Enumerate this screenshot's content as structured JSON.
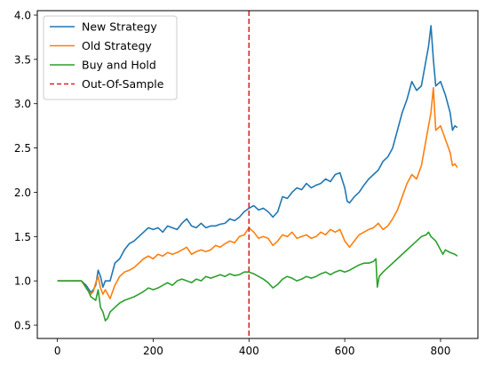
{
  "chart_data": {
    "type": "line",
    "title": "",
    "xlabel": "",
    "ylabel": "",
    "xlim": [
      -42,
      878
    ],
    "ylim": [
      0.35,
      4.05
    ],
    "xticks": [
      0,
      200,
      400,
      600,
      800
    ],
    "yticks": [
      0.5,
      1.0,
      1.5,
      2.0,
      2.5,
      3.0,
      3.5,
      4.0
    ],
    "ytick_labels": [
      "0.5",
      "1.0",
      "1.5",
      "2.0",
      "2.5",
      "3.0",
      "3.5",
      "4.0"
    ],
    "grid": false,
    "legend_position": "upper-left",
    "vline": {
      "x": 400,
      "label": "Out-Of-Sample",
      "color": "#d62728",
      "style": "dashed"
    },
    "series": [
      {
        "name": "New Strategy",
        "color": "#1f77b4",
        "points": [
          [
            0,
            1.0
          ],
          [
            20,
            1.0
          ],
          [
            50,
            1.0
          ],
          [
            60,
            0.95
          ],
          [
            70,
            0.87
          ],
          [
            75,
            0.9
          ],
          [
            80,
            0.95
          ],
          [
            85,
            1.12
          ],
          [
            90,
            1.05
          ],
          [
            95,
            0.93
          ],
          [
            100,
            1.0
          ],
          [
            110,
            1.0
          ],
          [
            120,
            1.2
          ],
          [
            130,
            1.25
          ],
          [
            140,
            1.35
          ],
          [
            150,
            1.42
          ],
          [
            160,
            1.45
          ],
          [
            170,
            1.5
          ],
          [
            180,
            1.55
          ],
          [
            190,
            1.6
          ],
          [
            200,
            1.58
          ],
          [
            210,
            1.6
          ],
          [
            220,
            1.55
          ],
          [
            230,
            1.62
          ],
          [
            240,
            1.6
          ],
          [
            250,
            1.58
          ],
          [
            260,
            1.65
          ],
          [
            270,
            1.7
          ],
          [
            280,
            1.62
          ],
          [
            290,
            1.6
          ],
          [
            300,
            1.65
          ],
          [
            310,
            1.6
          ],
          [
            320,
            1.62
          ],
          [
            330,
            1.62
          ],
          [
            340,
            1.64
          ],
          [
            350,
            1.65
          ],
          [
            360,
            1.7
          ],
          [
            370,
            1.68
          ],
          [
            380,
            1.72
          ],
          [
            390,
            1.78
          ],
          [
            400,
            1.82
          ],
          [
            410,
            1.85
          ],
          [
            420,
            1.8
          ],
          [
            430,
            1.82
          ],
          [
            440,
            1.78
          ],
          [
            450,
            1.72
          ],
          [
            460,
            1.78
          ],
          [
            470,
            1.95
          ],
          [
            480,
            1.93
          ],
          [
            490,
            2.0
          ],
          [
            500,
            2.05
          ],
          [
            510,
            2.03
          ],
          [
            520,
            2.1
          ],
          [
            530,
            2.05
          ],
          [
            540,
            2.08
          ],
          [
            550,
            2.1
          ],
          [
            560,
            2.15
          ],
          [
            570,
            2.12
          ],
          [
            580,
            2.2
          ],
          [
            590,
            2.22
          ],
          [
            600,
            2.05
          ],
          [
            605,
            1.9
          ],
          [
            610,
            1.88
          ],
          [
            620,
            1.95
          ],
          [
            630,
            2.0
          ],
          [
            640,
            2.08
          ],
          [
            650,
            2.15
          ],
          [
            660,
            2.2
          ],
          [
            670,
            2.25
          ],
          [
            680,
            2.35
          ],
          [
            690,
            2.4
          ],
          [
            700,
            2.5
          ],
          [
            710,
            2.7
          ],
          [
            720,
            2.9
          ],
          [
            730,
            3.05
          ],
          [
            740,
            3.25
          ],
          [
            750,
            3.15
          ],
          [
            760,
            3.2
          ],
          [
            770,
            3.5
          ],
          [
            775,
            3.65
          ],
          [
            780,
            3.88
          ],
          [
            785,
            3.5
          ],
          [
            790,
            3.2
          ],
          [
            800,
            3.25
          ],
          [
            810,
            3.1
          ],
          [
            820,
            2.9
          ],
          [
            825,
            2.7
          ],
          [
            830,
            2.75
          ],
          [
            835,
            2.73
          ]
        ]
      },
      {
        "name": "Old Strategy",
        "color": "#ff7f0e",
        "points": [
          [
            0,
            1.0
          ],
          [
            20,
            1.0
          ],
          [
            50,
            1.0
          ],
          [
            60,
            0.92
          ],
          [
            70,
            0.85
          ],
          [
            75,
            0.88
          ],
          [
            80,
            0.98
          ],
          [
            85,
            1.05
          ],
          [
            90,
            0.92
          ],
          [
            95,
            0.85
          ],
          [
            100,
            0.9
          ],
          [
            110,
            0.8
          ],
          [
            120,
            0.95
          ],
          [
            130,
            1.05
          ],
          [
            140,
            1.1
          ],
          [
            150,
            1.12
          ],
          [
            160,
            1.15
          ],
          [
            170,
            1.2
          ],
          [
            180,
            1.25
          ],
          [
            190,
            1.28
          ],
          [
            200,
            1.25
          ],
          [
            210,
            1.3
          ],
          [
            220,
            1.28
          ],
          [
            230,
            1.32
          ],
          [
            240,
            1.3
          ],
          [
            250,
            1.32
          ],
          [
            260,
            1.35
          ],
          [
            270,
            1.38
          ],
          [
            280,
            1.3
          ],
          [
            290,
            1.33
          ],
          [
            300,
            1.35
          ],
          [
            310,
            1.33
          ],
          [
            320,
            1.35
          ],
          [
            330,
            1.4
          ],
          [
            340,
            1.38
          ],
          [
            350,
            1.42
          ],
          [
            360,
            1.45
          ],
          [
            370,
            1.43
          ],
          [
            380,
            1.5
          ],
          [
            390,
            1.52
          ],
          [
            400,
            1.6
          ],
          [
            410,
            1.55
          ],
          [
            420,
            1.48
          ],
          [
            430,
            1.5
          ],
          [
            440,
            1.48
          ],
          [
            450,
            1.4
          ],
          [
            460,
            1.45
          ],
          [
            470,
            1.52
          ],
          [
            480,
            1.5
          ],
          [
            490,
            1.55
          ],
          [
            500,
            1.48
          ],
          [
            510,
            1.5
          ],
          [
            520,
            1.52
          ],
          [
            530,
            1.48
          ],
          [
            540,
            1.5
          ],
          [
            550,
            1.55
          ],
          [
            560,
            1.52
          ],
          [
            570,
            1.58
          ],
          [
            580,
            1.55
          ],
          [
            590,
            1.58
          ],
          [
            600,
            1.45
          ],
          [
            610,
            1.38
          ],
          [
            620,
            1.45
          ],
          [
            630,
            1.52
          ],
          [
            640,
            1.55
          ],
          [
            650,
            1.58
          ],
          [
            660,
            1.6
          ],
          [
            670,
            1.65
          ],
          [
            680,
            1.58
          ],
          [
            690,
            1.62
          ],
          [
            700,
            1.7
          ],
          [
            710,
            1.8
          ],
          [
            720,
            1.95
          ],
          [
            730,
            2.1
          ],
          [
            740,
            2.2
          ],
          [
            750,
            2.15
          ],
          [
            760,
            2.3
          ],
          [
            770,
            2.6
          ],
          [
            780,
            2.9
          ],
          [
            785,
            3.18
          ],
          [
            790,
            2.7
          ],
          [
            800,
            2.75
          ],
          [
            810,
            2.6
          ],
          [
            820,
            2.45
          ],
          [
            825,
            2.3
          ],
          [
            830,
            2.32
          ],
          [
            835,
            2.28
          ]
        ]
      },
      {
        "name": "Buy and Hold",
        "color": "#2ca02c",
        "points": [
          [
            0,
            1.0
          ],
          [
            20,
            1.0
          ],
          [
            50,
            1.0
          ],
          [
            55,
            0.97
          ],
          [
            60,
            0.92
          ],
          [
            65,
            0.88
          ],
          [
            70,
            0.82
          ],
          [
            75,
            0.8
          ],
          [
            80,
            0.78
          ],
          [
            85,
            0.9
          ],
          [
            90,
            0.7
          ],
          [
            95,
            0.65
          ],
          [
            100,
            0.55
          ],
          [
            105,
            0.58
          ],
          [
            110,
            0.65
          ],
          [
            120,
            0.7
          ],
          [
            130,
            0.75
          ],
          [
            140,
            0.78
          ],
          [
            150,
            0.8
          ],
          [
            160,
            0.82
          ],
          [
            170,
            0.85
          ],
          [
            180,
            0.88
          ],
          [
            190,
            0.92
          ],
          [
            200,
            0.9
          ],
          [
            210,
            0.92
          ],
          [
            220,
            0.95
          ],
          [
            230,
            0.98
          ],
          [
            240,
            0.95
          ],
          [
            250,
            1.0
          ],
          [
            260,
            1.02
          ],
          [
            270,
            1.0
          ],
          [
            280,
            0.98
          ],
          [
            290,
            1.02
          ],
          [
            300,
            1.0
          ],
          [
            310,
            1.05
          ],
          [
            320,
            1.03
          ],
          [
            330,
            1.05
          ],
          [
            340,
            1.07
          ],
          [
            350,
            1.05
          ],
          [
            360,
            1.08
          ],
          [
            370,
            1.06
          ],
          [
            380,
            1.07
          ],
          [
            390,
            1.1
          ],
          [
            400,
            1.1
          ],
          [
            410,
            1.08
          ],
          [
            420,
            1.05
          ],
          [
            430,
            1.02
          ],
          [
            440,
            0.98
          ],
          [
            450,
            0.92
          ],
          [
            460,
            0.96
          ],
          [
            470,
            1.02
          ],
          [
            480,
            1.05
          ],
          [
            490,
            1.03
          ],
          [
            500,
            1.0
          ],
          [
            510,
            1.02
          ],
          [
            520,
            1.05
          ],
          [
            530,
            1.03
          ],
          [
            540,
            1.05
          ],
          [
            550,
            1.08
          ],
          [
            560,
            1.1
          ],
          [
            570,
            1.07
          ],
          [
            580,
            1.1
          ],
          [
            590,
            1.12
          ],
          [
            600,
            1.1
          ],
          [
            610,
            1.12
          ],
          [
            620,
            1.15
          ],
          [
            630,
            1.18
          ],
          [
            640,
            1.2
          ],
          [
            650,
            1.2
          ],
          [
            660,
            1.22
          ],
          [
            665,
            1.25
          ],
          [
            668,
            0.93
          ],
          [
            672,
            1.05
          ],
          [
            680,
            1.1
          ],
          [
            690,
            1.15
          ],
          [
            700,
            1.2
          ],
          [
            710,
            1.25
          ],
          [
            720,
            1.3
          ],
          [
            730,
            1.35
          ],
          [
            740,
            1.4
          ],
          [
            750,
            1.45
          ],
          [
            760,
            1.5
          ],
          [
            770,
            1.52
          ],
          [
            775,
            1.55
          ],
          [
            780,
            1.5
          ],
          [
            790,
            1.45
          ],
          [
            800,
            1.35
          ],
          [
            805,
            1.3
          ],
          [
            810,
            1.35
          ],
          [
            820,
            1.32
          ],
          [
            830,
            1.3
          ],
          [
            835,
            1.28
          ]
        ]
      }
    ]
  }
}
